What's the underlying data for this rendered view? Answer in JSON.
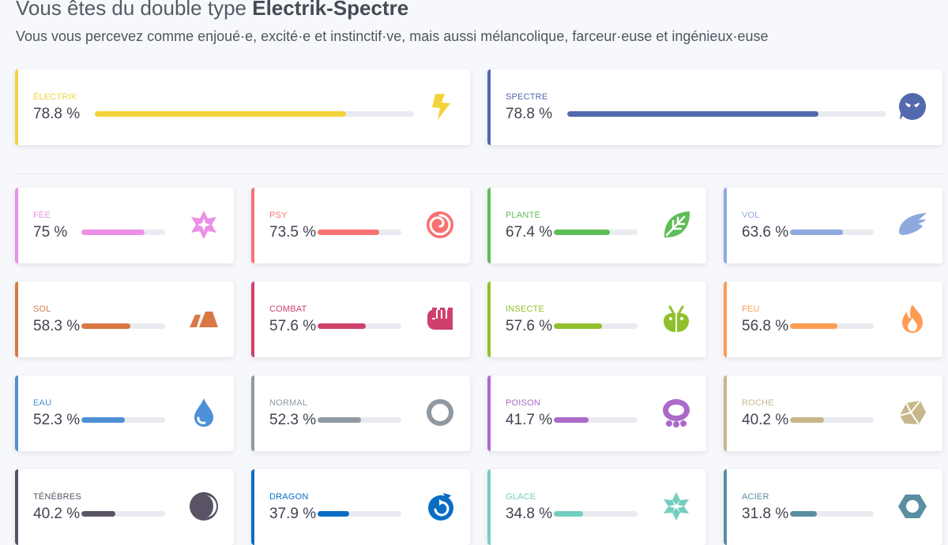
{
  "header": {
    "title_prefix": "Vous êtes du double type ",
    "title_bold": "Electrik-Spectre",
    "subtitle": "Vous vous percevez comme enjoué·e, excité·e et instinctif·ve, mais aussi mélancolique, farceur·euse et ingénieux·euse"
  },
  "main_types": [
    {
      "name": "ÉLECTRIK",
      "percent_label": "78.8 %",
      "value": 78.8,
      "color": "#f4d23c",
      "icon": "lightning-icon"
    },
    {
      "name": "SPECTRE",
      "percent_label": "78.8 %",
      "value": 78.8,
      "color": "#5269ad",
      "icon": "ghost-icon"
    }
  ],
  "types": [
    {
      "name": "FÉE",
      "percent_label": "75 %",
      "value": 75,
      "color": "#ec8fe6",
      "icon": "fairy-icon"
    },
    {
      "name": "PSY",
      "percent_label": "73.5 %",
      "value": 73.5,
      "color": "#f87171",
      "icon": "psychic-icon"
    },
    {
      "name": "PLANTE",
      "percent_label": "67.4 %",
      "value": 67.4,
      "color": "#5fbd58",
      "icon": "grass-icon"
    },
    {
      "name": "VOL",
      "percent_label": "63.6 %",
      "value": 63.6,
      "color": "#8fa8dd",
      "icon": "flying-icon"
    },
    {
      "name": "SOL",
      "percent_label": "58.3 %",
      "value": 58.3,
      "color": "#d97845",
      "icon": "ground-icon"
    },
    {
      "name": "COMBAT",
      "percent_label": "57.6 %",
      "value": 57.6,
      "color": "#ce416b",
      "icon": "fighting-icon"
    },
    {
      "name": "INSECTE",
      "percent_label": "57.6 %",
      "value": 57.6,
      "color": "#90c12c",
      "icon": "bug-icon"
    },
    {
      "name": "FEU",
      "percent_label": "56.8 %",
      "value": 56.8,
      "color": "#ff9c54",
      "icon": "fire-icon"
    },
    {
      "name": "EAU",
      "percent_label": "52.3 %",
      "value": 52.3,
      "color": "#4d90d5",
      "icon": "water-icon"
    },
    {
      "name": "NORMAL",
      "percent_label": "52.3 %",
      "value": 52.3,
      "color": "#9099a1",
      "icon": "normal-icon"
    },
    {
      "name": "POISON",
      "percent_label": "41.7 %",
      "value": 41.7,
      "color": "#ab6ac8",
      "icon": "poison-icon"
    },
    {
      "name": "ROCHE",
      "percent_label": "40.2 %",
      "value": 40.2,
      "color": "#c7b78b",
      "icon": "rock-icon"
    },
    {
      "name": "TÉNÈBRES",
      "percent_label": "40.2 %",
      "value": 40.2,
      "color": "#5a5366",
      "icon": "dark-icon"
    },
    {
      "name": "DRAGON",
      "percent_label": "37.9 %",
      "value": 37.9,
      "color": "#0a6dc4",
      "icon": "dragon-icon"
    },
    {
      "name": "GLACE",
      "percent_label": "34.8 %",
      "value": 34.8,
      "color": "#73cec0",
      "icon": "ice-icon"
    },
    {
      "name": "ACIER",
      "percent_label": "31.8 %",
      "value": 31.8,
      "color": "#5a8ea1",
      "icon": "steel-icon"
    }
  ]
}
